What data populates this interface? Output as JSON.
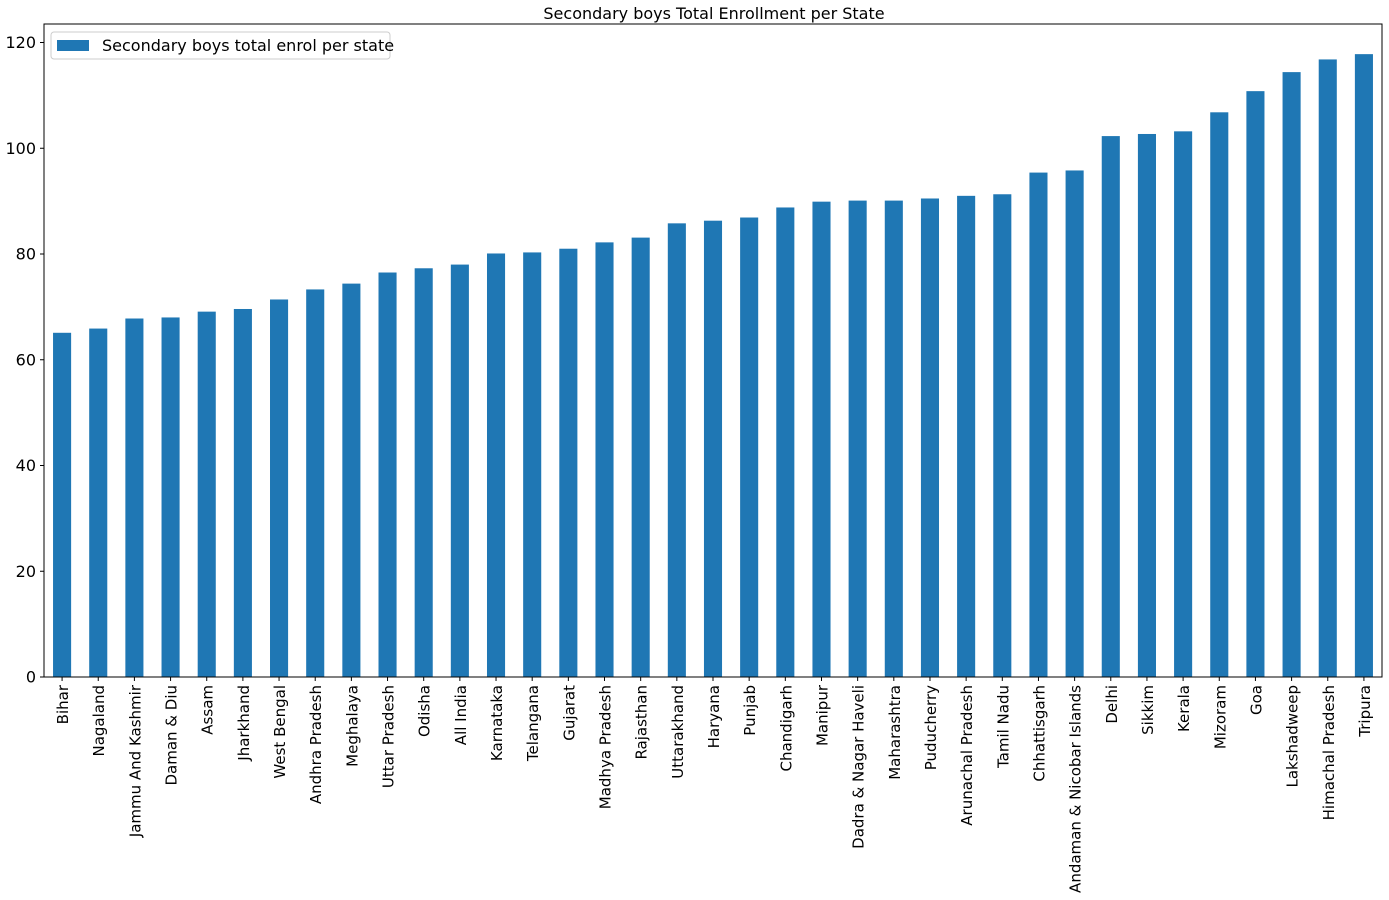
{
  "chart_data": {
    "type": "bar",
    "title": "Secondary  boys Total Enrollment per State",
    "xlabel": "",
    "ylabel": "",
    "ylim": [
      0,
      123.5
    ],
    "yticks": [
      0,
      20,
      40,
      60,
      80,
      100,
      120
    ],
    "grid": false,
    "legend": {
      "placement": "top-left"
    },
    "bar_color": "#1f77b4",
    "categories": [
      "Bihar",
      "Nagaland",
      "Jammu And Kashmir",
      "Daman & Diu",
      "Assam",
      "Jharkhand",
      "West Bengal",
      "Andhra Pradesh",
      "Meghalaya",
      "Uttar Pradesh",
      "Odisha",
      "All India",
      "Karnataka",
      "Telangana",
      "Gujarat",
      "Madhya Pradesh",
      "Rajasthan",
      "Uttarakhand",
      "Haryana",
      "Punjab",
      "Chandigarh",
      "Manipur",
      "Dadra & Nagar Haveli",
      "Maharashtra",
      "Puducherry",
      "Arunachal Pradesh",
      "Tamil Nadu",
      "Chhattisgarh",
      "Andaman & Nicobar Islands",
      "Delhi",
      "Sikkim",
      "Kerala",
      "Mizoram",
      "Goa",
      "Lakshadweep",
      "Himachal Pradesh",
      "Tripura"
    ],
    "series": [
      {
        "name": "Secondary  boys total enrol per state",
        "values": [
          65.1,
          65.9,
          67.8,
          68.0,
          69.1,
          69.6,
          71.4,
          73.3,
          74.4,
          76.5,
          77.3,
          78.0,
          80.1,
          80.3,
          81.0,
          82.2,
          83.1,
          85.8,
          86.3,
          86.9,
          88.8,
          89.9,
          90.1,
          90.1,
          90.5,
          91.0,
          91.3,
          95.4,
          95.8,
          102.3,
          102.7,
          103.2,
          106.8,
          110.8,
          114.4,
          116.8,
          117.8
        ]
      }
    ]
  }
}
